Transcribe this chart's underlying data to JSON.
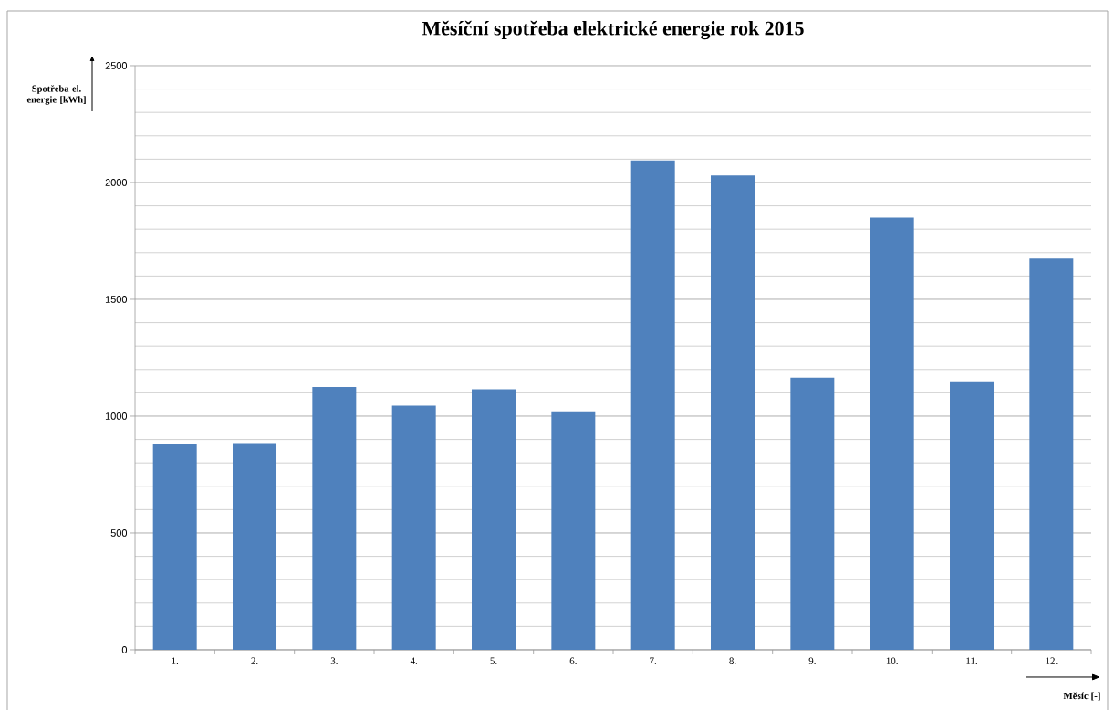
{
  "chart_data": {
    "type": "bar",
    "title": "Měsíční spotřeba elektrické energie rok 2015",
    "xlabel": "Měsíc [-]",
    "ylabel": "Spotřeba el. energie [kWh]",
    "categories": [
      "1.",
      "2.",
      "3.",
      "4.",
      "5.",
      "6.",
      "7.",
      "8.",
      "9.",
      "10.",
      "11.",
      "12."
    ],
    "values": [
      880,
      885,
      1125,
      1045,
      1115,
      1020,
      2095,
      2030,
      1165,
      1850,
      1145,
      1675
    ],
    "color": "#4f81bd",
    "ylim": [
      0,
      2500
    ],
    "yticks": [
      0,
      500,
      1000,
      1500,
      2000,
      2500
    ],
    "grid": "y"
  }
}
